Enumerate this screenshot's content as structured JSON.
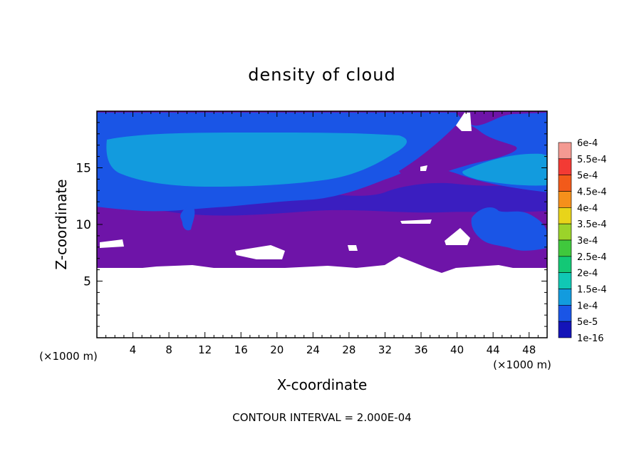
{
  "chart_data": {
    "type": "heatmap",
    "title": "density of cloud",
    "xlabel": "X-coordinate",
    "ylabel": "Z-coordinate",
    "x_unit_label": "(×1000 m)",
    "x_unit_label_right": "(×1000 m)",
    "x_range": [
      0,
      50
    ],
    "y_range": [
      0,
      20
    ],
    "x_ticks": [
      4,
      8,
      12,
      16,
      20,
      24,
      28,
      32,
      36,
      40,
      44,
      48
    ],
    "y_ticks": [
      5,
      10,
      15
    ],
    "footer": "CONTOUR INTERVAL = 2.000E-04",
    "colorbar": {
      "levels": [
        {
          "label": "6e-4",
          "color": "#f49a92"
        },
        {
          "label": "5.5e-4",
          "color": "#f33a34"
        },
        {
          "label": "5e-4",
          "color": "#f25a1a"
        },
        {
          "label": "4.5e-4",
          "color": "#f5901b"
        },
        {
          "label": "4e-4",
          "color": "#e8d41a"
        },
        {
          "label": "3.5e-4",
          "color": "#9bd32a"
        },
        {
          "label": "3e-4",
          "color": "#40c83d"
        },
        {
          "label": "2.5e-4",
          "color": "#13c876"
        },
        {
          "label": "2e-4",
          "color": "#10c8b4"
        },
        {
          "label": "1.5e-4",
          "color": "#129bde"
        },
        {
          "label": "1e-4",
          "color": "#1a55e6"
        },
        {
          "label": "5e-5",
          "color": "#1414b8"
        },
        {
          "label": "1e-16",
          "color": "#6e14a8"
        }
      ]
    },
    "field_colors": {
      "clear": "#ffffff",
      "lowest": "#6e14a8",
      "low": "#3a1ec0",
      "mid": "#1a55e6",
      "high": "#129bde"
    }
  }
}
